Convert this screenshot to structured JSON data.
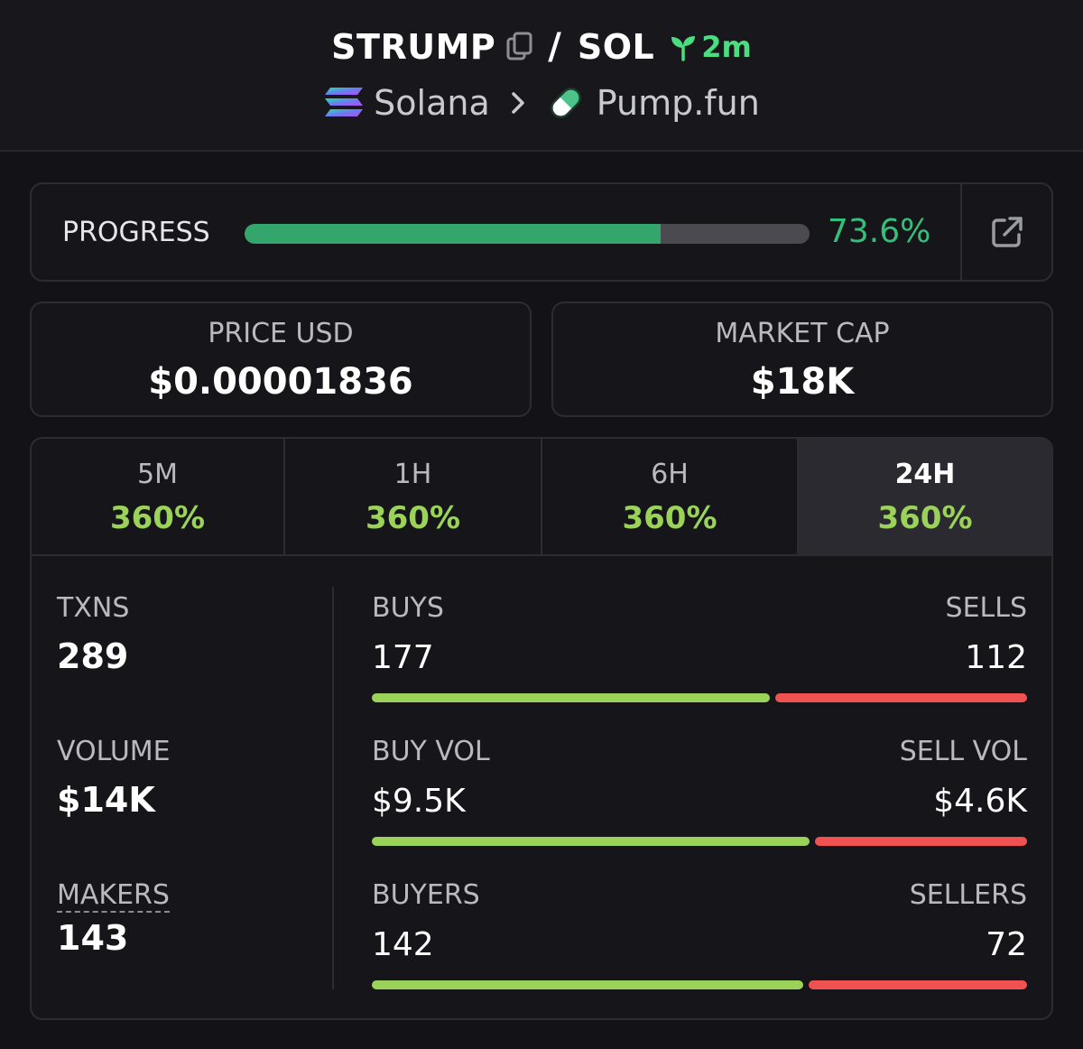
{
  "header": {
    "token": "STRUMP",
    "separator": "/",
    "quote": "SOL",
    "age": "2m",
    "chain": "Solana",
    "dex": "Pump.fun",
    "icons": {
      "copy": "copy-icon",
      "age": "sprout-icon",
      "chain": "solana-logo",
      "chevron": "chevron-right-icon",
      "dex": "pill-icon"
    }
  },
  "progress": {
    "label": "PROGRESS",
    "value": 73.6,
    "text": "73.6%",
    "icon": "external-link-icon"
  },
  "price": {
    "label": "PRICE USD",
    "value": "$0.00001836"
  },
  "market_cap": {
    "label": "MARKET CAP",
    "value": "$18K"
  },
  "tabs": [
    {
      "label": "5M",
      "value": "360%",
      "active": false
    },
    {
      "label": "1H",
      "value": "360%",
      "active": false
    },
    {
      "label": "6H",
      "value": "360%",
      "active": false
    },
    {
      "label": "24H",
      "value": "360%",
      "active": true
    }
  ],
  "stats": {
    "txns": {
      "label": "TXNS",
      "value": "289"
    },
    "volume": {
      "label": "VOLUME",
      "value": "$14K"
    },
    "makers": {
      "label": "MAKERS",
      "value": "143"
    },
    "buys": {
      "left_label": "BUYS",
      "left_value": "177",
      "right_label": "SELLS",
      "right_value": "112",
      "left_num": 177,
      "right_num": 112
    },
    "vol": {
      "left_label": "BUY VOL",
      "left_value": "$9.5K",
      "right_label": "SELL VOL",
      "right_value": "$4.6K",
      "left_num": 9.5,
      "right_num": 4.6
    },
    "buyers": {
      "left_label": "BUYERS",
      "left_value": "142",
      "right_label": "SELLERS",
      "right_value": "72",
      "left_num": 142,
      "right_num": 72
    }
  },
  "colors": {
    "green": "#9bd35a",
    "red": "#f05252",
    "progress": "#34a66b",
    "age": "#4ade80"
  }
}
